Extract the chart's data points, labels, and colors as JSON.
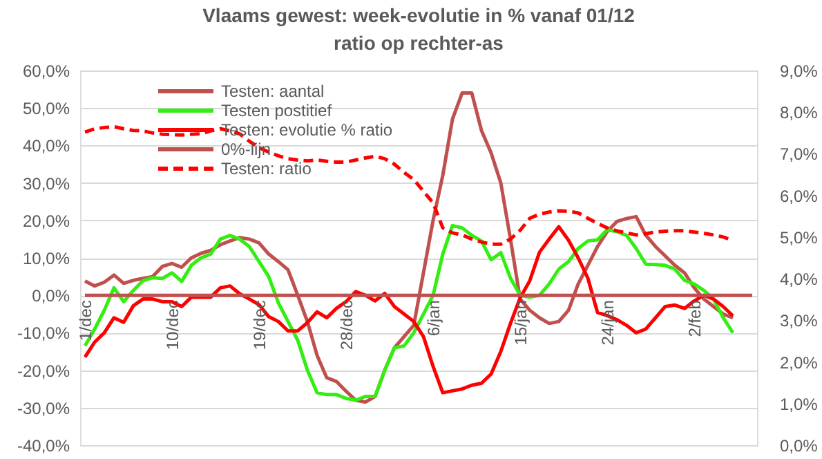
{
  "chart_data": {
    "type": "line",
    "title": "Vlaams gewest:  week-evolutie in %  vanaf 01/12",
    "subtitle": "ratio op rechter-as",
    "categories": [
      "1/dec",
      null,
      null,
      null,
      null,
      null,
      null,
      null,
      null,
      "10/dec",
      null,
      null,
      null,
      null,
      null,
      null,
      null,
      null,
      "19/dec",
      null,
      null,
      null,
      null,
      null,
      null,
      null,
      null,
      "28/dec",
      null,
      null,
      null,
      null,
      null,
      null,
      null,
      null,
      "6/jan",
      null,
      null,
      null,
      null,
      null,
      null,
      null,
      null,
      "15/jan",
      null,
      null,
      null,
      null,
      null,
      null,
      null,
      null,
      "24/jan",
      null,
      null,
      null,
      null,
      null,
      null,
      null,
      null,
      "2/feb",
      null,
      null,
      null,
      null,
      null,
      null
    ],
    "series": [
      {
        "name": "Testen: aantal",
        "color": "#c0504d",
        "values": [
          3.8,
          2.5,
          3.5,
          5.4,
          3.2,
          4,
          4.5,
          5,
          7.7,
          8.5,
          7.5,
          10,
          11.2,
          12,
          13.5,
          14.5,
          15.4,
          15,
          14,
          11,
          9,
          6.8,
          0,
          -7,
          -16,
          -22,
          -23,
          -25.6,
          -28,
          -28.5,
          -27,
          -20,
          -14,
          -11,
          -8,
          6,
          20,
          32,
          47,
          54,
          54,
          44,
          38,
          30,
          15,
          -1,
          -4,
          -6,
          -7.5,
          -7,
          -4,
          3,
          8,
          13,
          17,
          19.7,
          20.5,
          21,
          16,
          13,
          10.5,
          8,
          6,
          2,
          -1,
          -3,
          -5,
          -6,
          null,
          null
        ]
      },
      {
        "name": "Testen postitief",
        "color": "#33ee11",
        "values": [
          -13.5,
          -9,
          -4,
          2,
          -1.7,
          1.3,
          3.9,
          4.7,
          4.5,
          6,
          3.7,
          8,
          10,
          11,
          15,
          16,
          15,
          13,
          9,
          5,
          -2,
          -7,
          -12,
          -20,
          -26,
          -26.5,
          -26.5,
          -27.5,
          -28,
          -27,
          -27,
          -20,
          -14,
          -13.5,
          -10,
          -5,
          0,
          11,
          18.6,
          18,
          16,
          14.5,
          9.5,
          11.4,
          4.6,
          0,
          -0.5,
          0,
          3,
          7,
          9,
          12.5,
          14.5,
          14.8,
          17.5,
          17,
          16,
          12.5,
          8.3,
          8.2,
          8,
          7,
          4,
          3,
          1.3,
          -1,
          -6,
          -10,
          null,
          null
        ]
      },
      {
        "name": "Testen: evolutie % ratio",
        "color": "#ff0000",
        "values": [
          -16.5,
          -12.5,
          -10,
          -6,
          -7.2,
          -2.8,
          -1,
          -1,
          -1.7,
          -1.7,
          -3,
          -0.5,
          -0.5,
          -0.5,
          2,
          2.5,
          0.4,
          -1,
          -2.5,
          -5.7,
          -7,
          -9.5,
          -9.5,
          -7.3,
          -4.4,
          -6,
          -3.5,
          -1.7,
          1,
          0,
          -1.5,
          0.5,
          -3,
          -5,
          -7,
          -11,
          -19,
          -26,
          -25.5,
          -25,
          -24,
          -23.5,
          -21,
          -15,
          -7.5,
          -0.7,
          3.9,
          11.5,
          15,
          18.3,
          14.7,
          10,
          4.6,
          -4.6,
          -5.4,
          -6.5,
          -8,
          -10,
          -9,
          -6,
          -3,
          -2.6,
          -3.5,
          -1.5,
          0,
          -1,
          -3,
          -5.5,
          null,
          null
        ]
      },
      {
        "name": "0%-lijn",
        "color": "#c0504d",
        "values": [
          0,
          0,
          0,
          0,
          0,
          0,
          0,
          0,
          0,
          0,
          0,
          0,
          0,
          0,
          0,
          0,
          0,
          0,
          0,
          0,
          0,
          0,
          0,
          0,
          0,
          0,
          0,
          0,
          0,
          0,
          0,
          0,
          0,
          0,
          0,
          0,
          0,
          0,
          0,
          0,
          0,
          0,
          0,
          0,
          0,
          0,
          0,
          0,
          0,
          0,
          0,
          0,
          0,
          0,
          0,
          0,
          0,
          0,
          0,
          0,
          0,
          0,
          0,
          0,
          0,
          0,
          0,
          0,
          0,
          0
        ]
      },
      {
        "name": "Testen: ratio",
        "color": "#ff0000",
        "axis": "y2",
        "line_style": "dashed",
        "values": [
          7.52,
          7.6,
          7.63,
          7.65,
          7.6,
          7.56,
          7.55,
          7.5,
          7.47,
          7.46,
          7.45,
          7.47,
          7.48,
          7.55,
          7.6,
          7.55,
          7.48,
          7.3,
          7.15,
          7.04,
          6.95,
          6.88,
          6.85,
          6.83,
          6.85,
          6.82,
          6.8,
          6.8,
          6.85,
          6.9,
          6.94,
          6.88,
          6.75,
          6.55,
          6.38,
          6.1,
          5.82,
          5.22,
          5.1,
          5.05,
          4.95,
          4.88,
          4.83,
          4.83,
          4.95,
          5.16,
          5.45,
          5.55,
          5.6,
          5.63,
          5.62,
          5.58,
          5.45,
          5.33,
          5.22,
          5.15,
          5.1,
          5.05,
          5.08,
          5.12,
          5.14,
          5.15,
          5.15,
          5.12,
          5.09,
          5.05,
          5.0,
          4.92,
          null,
          null
        ]
      }
    ],
    "ylim": [
      -40,
      60
    ],
    "yticks": [
      {
        "value": -40,
        "label": "-40,0%"
      },
      {
        "value": -30,
        "label": "-30,0%"
      },
      {
        "value": -20,
        "label": "-20,0%"
      },
      {
        "value": -10,
        "label": "-10,0%"
      },
      {
        "value": 0,
        "label": "0,0%"
      },
      {
        "value": 10,
        "label": "10,0%"
      },
      {
        "value": 20,
        "label": "20,0%"
      },
      {
        "value": 30,
        "label": "30,0%"
      },
      {
        "value": 40,
        "label": "40,0%"
      },
      {
        "value": 50,
        "label": "50,0%"
      },
      {
        "value": 60,
        "label": "60,0%"
      }
    ],
    "y2lim": [
      0,
      9
    ],
    "y2ticks": [
      {
        "value": 0,
        "label": "0,0%"
      },
      {
        "value": 1,
        "label": "1,0%"
      },
      {
        "value": 2,
        "label": "2,0%"
      },
      {
        "value": 3,
        "label": "3,0%"
      },
      {
        "value": 4,
        "label": "4,0%"
      },
      {
        "value": 5,
        "label": "5,0%"
      },
      {
        "value": 6,
        "label": "6,0%"
      },
      {
        "value": 7,
        "label": "7,0%"
      },
      {
        "value": 8,
        "label": "8,0%"
      },
      {
        "value": 9,
        "label": "9,0%"
      }
    ],
    "grid": "y",
    "legend": "top left"
  }
}
